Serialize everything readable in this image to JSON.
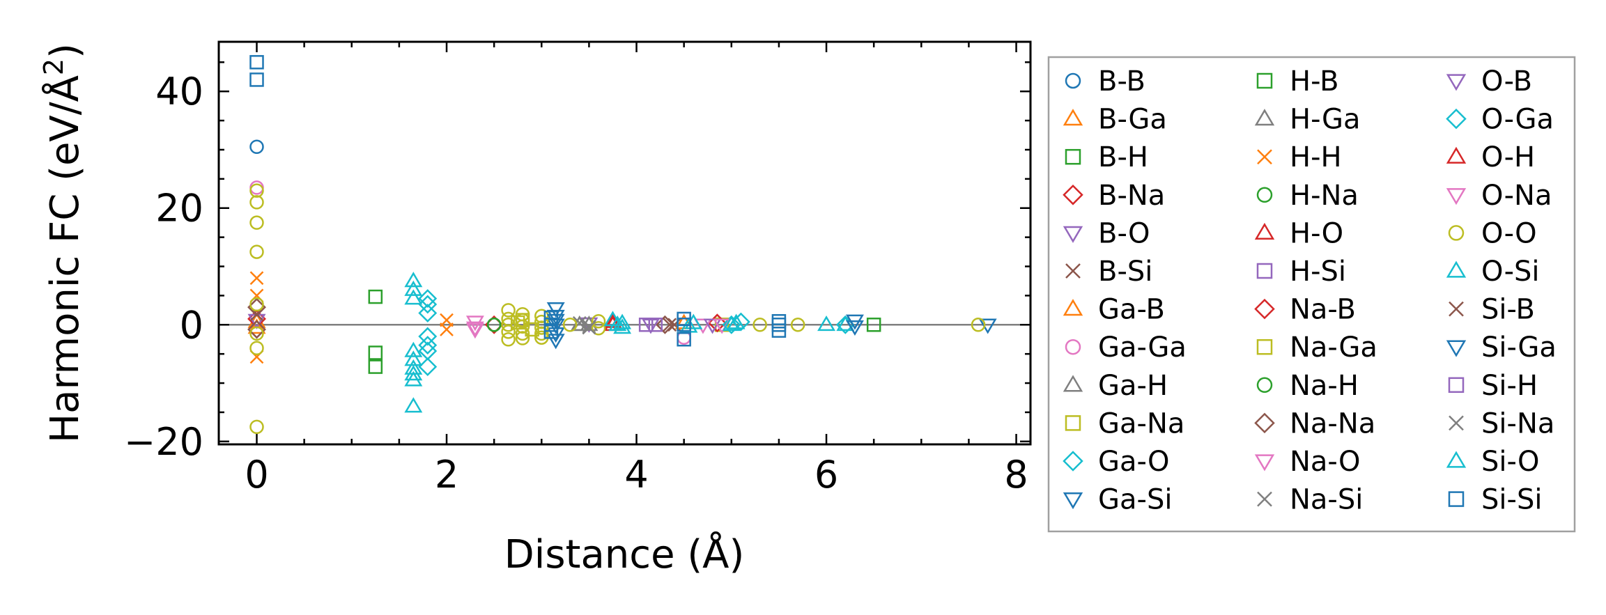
{
  "chart_data": {
    "type": "scatter",
    "xlabel": "Distance (Å)",
    "ylabel": "Harmonic FC (eV/Å²)",
    "ylabel_parts": {
      "main": "Harmonic FC (eV/Å",
      "sup": "2",
      "end": ")"
    },
    "xlim": [
      -0.4,
      8.15
    ],
    "ylim": [
      -20.5,
      48.5
    ],
    "xticks": [
      0,
      2,
      4,
      6,
      8
    ],
    "xtick_labels": [
      "0",
      "2",
      "4",
      "6",
      "8"
    ],
    "yticks": [
      -20,
      0,
      20,
      40
    ],
    "ytick_labels": [
      "−20",
      "0",
      "20",
      "40"
    ],
    "grid": false,
    "zero_line": true,
    "legend_placement": "outside-right",
    "legend_columns": 3,
    "series": [
      {
        "name": "B-B",
        "marker": "circle",
        "color": "#1f77b4",
        "x": [
          0
        ],
        "y": [
          30.5
        ]
      },
      {
        "name": "B-Ga",
        "marker": "triangle-up",
        "color": "#ff7f0e",
        "x": [
          0
        ],
        "y": [
          0.5
        ]
      },
      {
        "name": "B-H",
        "marker": "square",
        "color": "#2ca02c",
        "x": [
          1.25,
          1.25,
          1.25
        ],
        "y": [
          4.8,
          -4.8,
          -7.2
        ]
      },
      {
        "name": "B-Na",
        "marker": "diamond",
        "color": "#d62728",
        "x": [
          0,
          2.5
        ],
        "y": [
          1.0,
          0.0
        ]
      },
      {
        "name": "B-O",
        "marker": "triangle-down",
        "color": "#9467bd",
        "x": [
          0,
          3.5
        ],
        "y": [
          0.8,
          0.2
        ]
      },
      {
        "name": "B-Si",
        "marker": "x",
        "color": "#8c564b",
        "x": [
          0,
          4.4
        ],
        "y": [
          1.8,
          0.0
        ]
      },
      {
        "name": "Ga-B",
        "marker": "triangle-up",
        "color": "#ff7f0e",
        "x": [
          0,
          4.5
        ],
        "y": [
          -0.5,
          0.3
        ]
      },
      {
        "name": "Ga-Ga",
        "marker": "circle",
        "color": "#e377c2",
        "x": [
          0,
          4.5
        ],
        "y": [
          23.5,
          -2.2
        ]
      },
      {
        "name": "Ga-H",
        "marker": "triangle-up",
        "color": "#7f7f7f",
        "x": [
          3.4,
          3.5
        ],
        "y": [
          0.0,
          0.0
        ]
      },
      {
        "name": "Ga-Na",
        "marker": "square",
        "color": "#bcbd22",
        "x": [
          2.75,
          4.9
        ],
        "y": [
          0.4,
          0.0
        ]
      },
      {
        "name": "Ga-O",
        "marker": "diamond",
        "color": "#17becf",
        "x": [
          1.8,
          1.8,
          1.8,
          1.8,
          1.8,
          1.8,
          1.8,
          6.2
        ],
        "y": [
          4.5,
          3.5,
          2.0,
          -2.0,
          -3.5,
          -4.5,
          -7.2,
          0.0
        ]
      },
      {
        "name": "Ga-Si",
        "marker": "triangle-down",
        "color": "#1f77b4",
        "x": [
          3.15,
          3.15,
          3.15,
          3.15,
          3.15,
          7.7
        ],
        "y": [
          2.8,
          1.5,
          0.0,
          -1.5,
          -2.6,
          0.0
        ]
      },
      {
        "name": "H-B",
        "marker": "square",
        "color": "#2ca02c",
        "x": [
          6.5
        ],
        "y": [
          0.0
        ]
      },
      {
        "name": "H-Ga",
        "marker": "triangle-up",
        "color": "#7f7f7f",
        "x": [
          3.4
        ],
        "y": [
          0.0
        ]
      },
      {
        "name": "H-H",
        "marker": "x",
        "color": "#ff7f0e",
        "x": [
          0,
          0,
          0,
          2.0,
          2.0
        ],
        "y": [
          8.0,
          5.0,
          -5.5,
          0.8,
          -0.8
        ]
      },
      {
        "name": "H-Na",
        "marker": "circle",
        "color": "#2ca02c",
        "x": [
          2.5
        ],
        "y": [
          0.0
        ]
      },
      {
        "name": "H-O",
        "marker": "triangle-up",
        "color": "#d62728",
        "x": [
          3.75
        ],
        "y": [
          0.0
        ]
      },
      {
        "name": "H-Si",
        "marker": "square",
        "color": "#9467bd",
        "x": [
          4.1
        ],
        "y": [
          0.0
        ]
      },
      {
        "name": "Na-B",
        "marker": "diamond",
        "color": "#d62728",
        "x": [
          4.85
        ],
        "y": [
          0.3
        ]
      },
      {
        "name": "Na-Ga",
        "marker": "square",
        "color": "#bcbd22",
        "x": [
          2.8,
          2.9
        ],
        "y": [
          0.8,
          -0.8
        ]
      },
      {
        "name": "Na-H",
        "marker": "circle",
        "color": "#2ca02c",
        "x": [
          2.5
        ],
        "y": [
          0.0
        ]
      },
      {
        "name": "Na-Na",
        "marker": "diamond",
        "color": "#8c564b",
        "x": [
          0,
          0,
          4.3
        ],
        "y": [
          3.0,
          -0.8,
          0.0
        ]
      },
      {
        "name": "Na-O",
        "marker": "triangle-down",
        "color": "#e377c2",
        "x": [
          2.3,
          2.3,
          4.7
        ],
        "y": [
          0.5,
          -0.8,
          0.0
        ]
      },
      {
        "name": "Na-Si",
        "marker": "x",
        "color": "#7f7f7f",
        "x": [
          3.4,
          3.5
        ],
        "y": [
          0.3,
          -0.3
        ]
      },
      {
        "name": "O-B",
        "marker": "triangle-down",
        "color": "#9467bd",
        "x": [
          4.15,
          4.8
        ],
        "y": [
          0.0,
          0.0
        ]
      },
      {
        "name": "O-Ga",
        "marker": "diamond",
        "color": "#17becf",
        "x": [
          5.0,
          5.1
        ],
        "y": [
          0.0,
          0.5
        ]
      },
      {
        "name": "O-H",
        "marker": "triangle-up",
        "color": "#d62728",
        "x": [
          3.75
        ],
        "y": [
          0.5
        ]
      },
      {
        "name": "O-Na",
        "marker": "triangle-down",
        "color": "#e377c2",
        "x": [
          2.3,
          4.9
        ],
        "y": [
          -0.5,
          0.0
        ]
      },
      {
        "name": "O-O",
        "marker": "circle",
        "color": "#bcbd22",
        "x": [
          0,
          0,
          0,
          0,
          0,
          0,
          0,
          0,
          2.65,
          2.65,
          2.65,
          2.65,
          2.65,
          2.8,
          2.8,
          2.8,
          2.8,
          2.8,
          3.0,
          3.0,
          3.0,
          3.0,
          3.0,
          3.3,
          3.6,
          3.6,
          5.3,
          5.7,
          7.6
        ],
        "y": [
          23.0,
          21.0,
          17.5,
          12.5,
          3.5,
          -1.5,
          -4.0,
          -17.5,
          2.5,
          1.0,
          0.0,
          -1.2,
          -2.5,
          1.8,
          0.8,
          -0.3,
          -1.5,
          -2.3,
          1.5,
          0.5,
          -0.5,
          -1.5,
          -2.2,
          0.0,
          0.6,
          -0.6,
          0.0,
          0.0,
          0.0
        ]
      },
      {
        "name": "O-Si",
        "marker": "triangle-up",
        "color": "#17becf",
        "x": [
          1.65,
          1.65,
          1.65,
          1.65,
          1.65,
          1.65,
          1.65,
          1.65,
          1.65,
          3.75,
          3.85,
          3.85,
          4.6,
          5.0,
          6.0,
          6.2
        ],
        "y": [
          7.5,
          6.0,
          4.5,
          -4.5,
          -6.0,
          -7.5,
          -8.5,
          -9.5,
          -14.0,
          0.8,
          0.3,
          -0.5,
          0.3,
          0.0,
          0.0,
          0.0
        ]
      },
      {
        "name": "Si-B",
        "marker": "x",
        "color": "#8c564b",
        "x": [
          4.35
        ],
        "y": [
          0.0
        ]
      },
      {
        "name": "Si-Ga",
        "marker": "triangle-down",
        "color": "#1f77b4",
        "x": [
          3.15,
          6.3,
          6.3
        ],
        "y": [
          0.8,
          0.7,
          -0.3
        ]
      },
      {
        "name": "Si-H",
        "marker": "square",
        "color": "#9467bd",
        "x": [
          4.2
        ],
        "y": [
          0.0
        ]
      },
      {
        "name": "Si-Na",
        "marker": "x",
        "color": "#7f7f7f",
        "x": [
          3.5
        ],
        "y": [
          -0.5
        ]
      },
      {
        "name": "Si-O",
        "marker": "triangle-up",
        "color": "#17becf",
        "x": [
          3.8,
          4.55,
          5.05
        ],
        "y": [
          0.0,
          -0.3,
          0.3
        ]
      },
      {
        "name": "Si-Si",
        "marker": "square",
        "color": "#1f77b4",
        "x": [
          0,
          0,
          3.1,
          3.1,
          3.1,
          4.5,
          4.5,
          4.5,
          5.5,
          5.5,
          5.5
        ],
        "y": [
          45.0,
          42.0,
          1.2,
          0.0,
          -1.2,
          1.0,
          0.0,
          -2.5,
          0.6,
          0.0,
          -1.0
        ]
      }
    ]
  }
}
